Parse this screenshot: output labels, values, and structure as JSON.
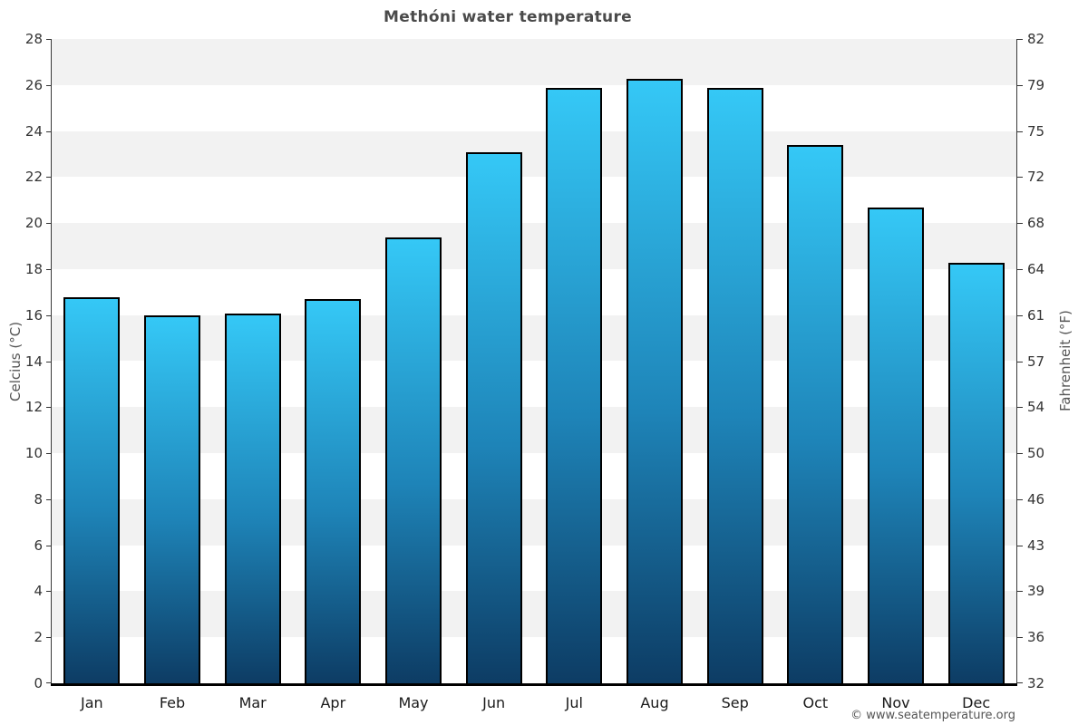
{
  "header": {
    "title": "Methóni water temperature"
  },
  "footer": {
    "copyright": "© www.seatemperature.org"
  },
  "chart_data": {
    "type": "bar",
    "title": "Methóni water temperature",
    "categories": [
      "Jan",
      "Feb",
      "Mar",
      "Apr",
      "May",
      "Jun",
      "Jul",
      "Aug",
      "Sep",
      "Oct",
      "Nov",
      "Dec"
    ],
    "values": [
      16.7,
      15.9,
      16.0,
      16.6,
      19.3,
      23.0,
      25.8,
      26.2,
      25.8,
      23.3,
      20.6,
      18.2
    ],
    "unit": "°C",
    "xlabel": "",
    "ylabel_left": "Celcius (°C)",
    "ylabel_right": "Fahrenheit (°F)",
    "ylim": [
      0,
      28
    ],
    "celsius_ticks": [
      0,
      2,
      4,
      6,
      8,
      10,
      12,
      14,
      16,
      18,
      20,
      22,
      24,
      26,
      28
    ],
    "fahrenheit_tick_labels": [
      "32",
      "36",
      "39",
      "43",
      "46",
      "50",
      "54",
      "57",
      "61",
      "64",
      "68",
      "72",
      "75",
      "79",
      "82"
    ],
    "grid": "alternating horizontal bands every 2°C, gray top band",
    "legend": "none"
  },
  "colors": {
    "bar_gradient_top": "#35c8f6",
    "bar_gradient_mid": "#1e84b8",
    "bar_gradient_bottom": "#0d3c64",
    "bar_border": "#000000",
    "band_gray": "#f2f2f2",
    "band_white": "#ffffff",
    "x_axis_line": "#000000",
    "y_axis_line": "#3a3a3a",
    "title_text": "#4a4a4a",
    "tick_text": "#333333",
    "month_text": "#1a1a1a",
    "axis_title_text": "#555555",
    "copyright_text": "#555555"
  }
}
